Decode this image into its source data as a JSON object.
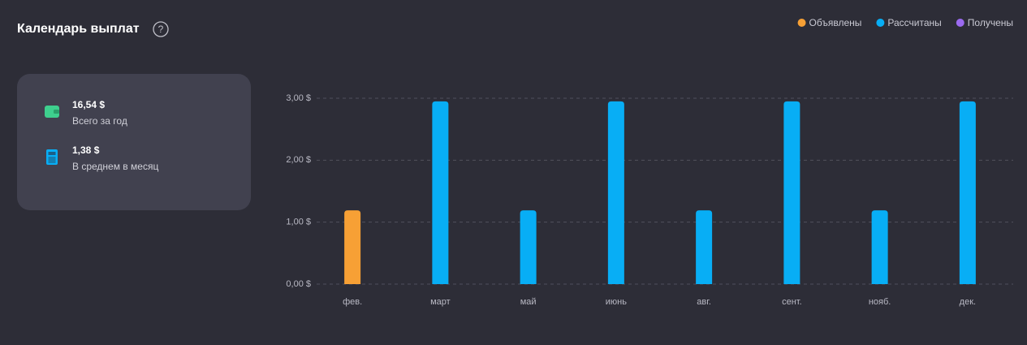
{
  "header": {
    "title": "Календарь выплат"
  },
  "summary": [
    {
      "value": "16,54 $",
      "label": "Всего за год"
    },
    {
      "value": "1,38 $",
      "label": "В среднем в месяц"
    }
  ],
  "chart_data": {
    "type": "bar",
    "categories": [
      "фев.",
      "март",
      "май",
      "июнь",
      "авг.",
      "сент.",
      "нояб.",
      "дек."
    ],
    "series": [
      {
        "name": "Объявлены",
        "color": "#f7a035",
        "values": [
          1.19,
          null,
          null,
          null,
          null,
          null,
          null,
          null
        ]
      },
      {
        "name": "Рассчитаны",
        "color": "#08aef5",
        "values": [
          null,
          2.95,
          1.19,
          2.95,
          1.19,
          2.95,
          1.19,
          2.95
        ]
      },
      {
        "name": "Получены",
        "color": "#9b6af0",
        "values": [
          null,
          null,
          null,
          null,
          null,
          null,
          null,
          null
        ]
      }
    ],
    "ylim": [
      0,
      3
    ],
    "yticks": [
      {
        "value": 0,
        "label": "0,00 $"
      },
      {
        "value": 1,
        "label": "1,00 $"
      },
      {
        "value": 2,
        "label": "2,00 $"
      },
      {
        "value": 3,
        "label": "3,00 $"
      }
    ],
    "grid": true,
    "legend": "top-right"
  }
}
